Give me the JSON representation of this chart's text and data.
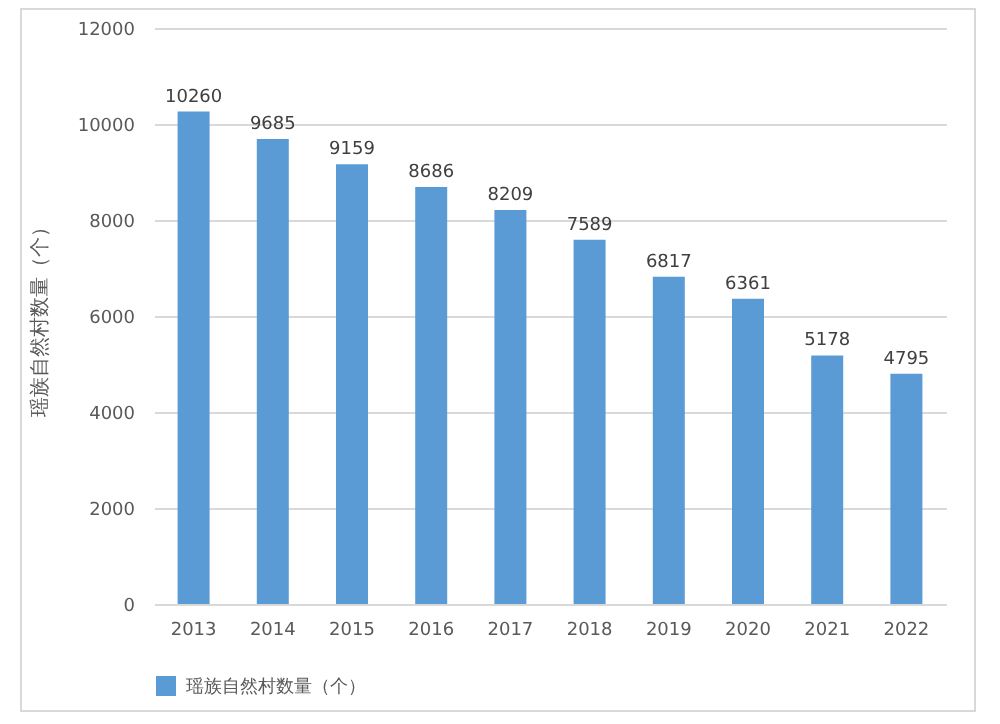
{
  "chart_data": {
    "type": "bar",
    "ylabel": "瑶族自然村数量（个）",
    "categories": [
      "2013",
      "2014",
      "2015",
      "2016",
      "2017",
      "2018",
      "2019",
      "2020",
      "2021",
      "2022"
    ],
    "series": [
      {
        "name": "瑶族自然村数量（个）",
        "color": "#5b9bd5",
        "values": [
          10260,
          9685,
          9159,
          8686,
          8209,
          7589,
          6817,
          6361,
          5178,
          4795
        ]
      }
    ],
    "ylim": [
      0,
      12000
    ],
    "yticks": [
      0,
      2000,
      4000,
      6000,
      8000,
      10000,
      12000
    ],
    "grid": "y",
    "data_labels": true,
    "legend": "bottom"
  }
}
